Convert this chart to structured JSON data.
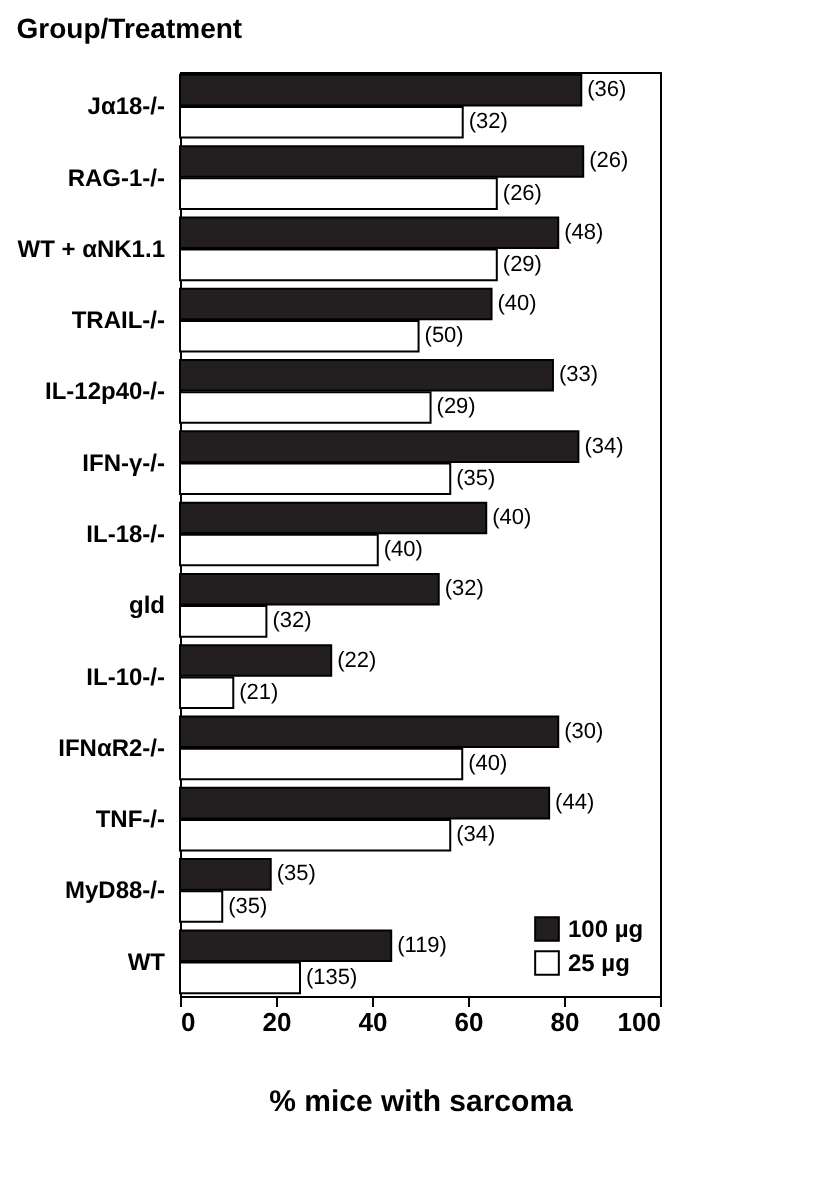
{
  "chart_data": {
    "type": "bar",
    "orientation": "horizontal",
    "title": "Group/Treatment",
    "xlabel": "% mice with sarcoma",
    "categories": [
      "Jα18-/-",
      "RAG-1-/-",
      "WT + αNK1.1",
      "TRAIL-/-",
      "IL-12p40-/-",
      "IFN-γ-/-",
      "IL-18-/-",
      "gld",
      "IL-10-/-",
      "IFNαR2-/-",
      "TNF-/-",
      "MyD88-/-",
      "WT"
    ],
    "series": [
      {
        "name": "100 µg",
        "color": "#231f20",
        "values": [
          83.6,
          84,
          78.8,
          64.9,
          77.7,
          83,
          63.8,
          53.9,
          31.5,
          78.8,
          76.9,
          18.9,
          44
        ]
      },
      {
        "name": "25 µg",
        "color": "#ffffff",
        "values": [
          58.9,
          66,
          66,
          49.7,
          52.2,
          56.3,
          41.2,
          18,
          11.1,
          58.8,
          56.3,
          8.8,
          25
        ]
      }
    ],
    "annotations": [
      {
        "text": "(36)",
        "x": 83.6,
        "y": "Jα18-/-"
      },
      {
        "text": "(32)",
        "x": 58.9,
        "y": "Jα18-/-"
      },
      {
        "text": "(26)",
        "x": 84,
        "y": "RAG-1-/-"
      },
      {
        "text": "(26)",
        "x": 66,
        "y": "RAG-1-/-"
      },
      {
        "text": "(48)",
        "x": 78.8,
        "y": "WT + αNK1.1"
      },
      {
        "text": "(29)",
        "x": 66,
        "y": "WT + αNK1.1"
      },
      {
        "text": "(40)",
        "x": 64.9,
        "y": "TRAIL-/-"
      },
      {
        "text": "(50)",
        "x": 49.7,
        "y": "TRAIL-/-"
      },
      {
        "text": "(33)",
        "x": 77.7,
        "y": "IL-12p40-/-"
      },
      {
        "text": "(29)",
        "x": 52.2,
        "y": "IL-12p40-/-"
      },
      {
        "text": "(34)",
        "x": 83,
        "y": "IFN-γ-/-"
      },
      {
        "text": "(35)",
        "x": 56.3,
        "y": "IFN-γ-/-"
      },
      {
        "text": "(40)",
        "x": 63.8,
        "y": "IL-18-/-"
      },
      {
        "text": "(40)",
        "x": 41.2,
        "y": "IL-18-/-"
      },
      {
        "text": "(32)",
        "x": 53.9,
        "y": "gld"
      },
      {
        "text": "(32)",
        "x": 18,
        "y": "gld"
      },
      {
        "text": "(22)",
        "x": 31.5,
        "y": "IL-10-/-"
      },
      {
        "text": "(21)",
        "x": 11.1,
        "y": "IL-10-/-"
      },
      {
        "text": "(30)",
        "x": 78.8,
        "y": "IFNαR2-/-"
      },
      {
        "text": "(40)",
        "x": 58.8,
        "y": "IFNαR2-/-"
      },
      {
        "text": "(44)",
        "x": 76.9,
        "y": "TNF-/-"
      },
      {
        "text": "(34)",
        "x": 56.3,
        "y": "TNF-/-"
      },
      {
        "text": "(35)",
        "x": 18.9,
        "y": "MyD88-/-"
      },
      {
        "text": "(35)",
        "x": 8.8,
        "y": "MyD88-/-"
      },
      {
        "text": "(119)",
        "x": 44,
        "y": "WT"
      },
      {
        "text": "(135)",
        "x": 25,
        "y": "WT"
      }
    ],
    "xlim": [
      0,
      100
    ],
    "xticks": [
      0,
      20,
      40,
      60,
      80,
      100
    ],
    "legend": "bottom right"
  }
}
